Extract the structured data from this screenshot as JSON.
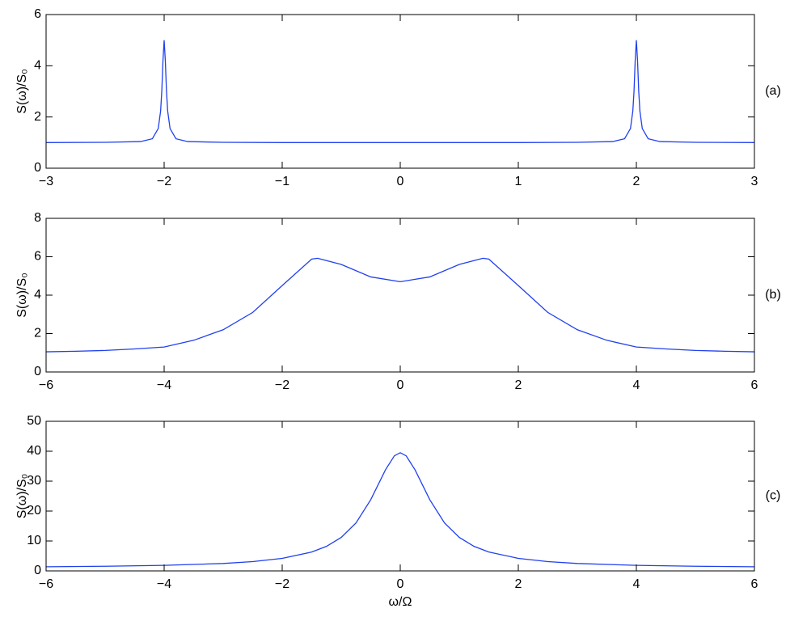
{
  "chart_data": [
    {
      "type": "line",
      "ylabel": "S(ω)/S₀",
      "annotation": "(a)",
      "x": [
        -3,
        -2.5,
        -2.2,
        -2.1,
        -2.05,
        -2.03,
        -2.02,
        -2.01,
        -2,
        -1.99,
        -1.98,
        -1.97,
        -1.95,
        -1.9,
        -1.8,
        -1.5,
        -1,
        0,
        1,
        1.5,
        1.8,
        1.9,
        1.95,
        1.97,
        1.98,
        1.99,
        2,
        2.01,
        2.02,
        2.03,
        2.05,
        2.1,
        2.2,
        2.5,
        3
      ],
      "series": [
        {
          "color": "#2040ee",
          "values": [
            1,
            1.01,
            1.04,
            1.15,
            1.55,
            2.23,
            3,
            4.2,
            5,
            4.2,
            3,
            2.23,
            1.55,
            1.15,
            1.04,
            1.01,
            1,
            1,
            1,
            1.01,
            1.04,
            1.15,
            1.55,
            2.23,
            3,
            4.2,
            5,
            4.2,
            3,
            2.23,
            1.55,
            1.15,
            1.04,
            1.01,
            1
          ]
        }
      ],
      "xlim": [
        -3,
        3
      ],
      "ylim": [
        0,
        6
      ],
      "xticks": [
        {
          "value": -3,
          "label": "−3"
        },
        {
          "value": -2,
          "label": "−2"
        },
        {
          "value": -1,
          "label": "−1"
        },
        0,
        1,
        2,
        3
      ],
      "yticks": [
        0,
        2,
        4,
        6
      ]
    },
    {
      "type": "line",
      "ylabel": "S(ω)/S₀",
      "annotation": "(b)",
      "x": [
        -6,
        -5.5,
        -5,
        -4.5,
        -4,
        -3.5,
        -3,
        -2.5,
        -2,
        -1.5,
        -1.4,
        -1,
        -0.5,
        0,
        0.5,
        1,
        1.4,
        1.5,
        2,
        2.5,
        3,
        3.5,
        4,
        4.5,
        5,
        5.5,
        6
      ],
      "series": [
        {
          "color": "#2040ee",
          "values": [
            1.05,
            1.08,
            1.12,
            1.2,
            1.3,
            1.65,
            2.2,
            3.1,
            4.5,
            5.88,
            5.92,
            5.6,
            4.95,
            4.7,
            4.95,
            5.6,
            5.92,
            5.88,
            4.5,
            3.1,
            2.2,
            1.65,
            1.3,
            1.2,
            1.12,
            1.08,
            1.05
          ]
        }
      ],
      "xlim": [
        -6,
        6
      ],
      "ylim": [
        0,
        8
      ],
      "xticks": [
        {
          "value": -6,
          "label": "−6"
        },
        {
          "value": -4,
          "label": "−4"
        },
        {
          "value": -2,
          "label": "−2"
        },
        0,
        2,
        4,
        6
      ],
      "yticks": [
        0,
        2,
        4,
        6,
        8
      ]
    },
    {
      "type": "line",
      "ylabel": "S(ω)/S₀",
      "annotation": "(c)",
      "xlabel": "ω/Ω",
      "x": [
        -6,
        -5,
        -4,
        -3,
        -2.5,
        -2,
        -1.5,
        -1.25,
        -1,
        -0.75,
        -0.5,
        -0.25,
        -0.1,
        0,
        0.1,
        0.25,
        0.5,
        0.75,
        1,
        1.25,
        1.5,
        2,
        2.5,
        3,
        4,
        5,
        6
      ],
      "series": [
        {
          "color": "#2040ee",
          "values": [
            1.38,
            1.55,
            1.85,
            2.48,
            3.1,
            4.2,
            6.31,
            8.21,
            11.2,
            16.02,
            23.8,
            33.8,
            38.46,
            39.5,
            38.46,
            33.8,
            23.8,
            16.02,
            11.2,
            8.21,
            6.31,
            4.2,
            3.1,
            2.48,
            1.85,
            1.55,
            1.38
          ]
        }
      ],
      "xlim": [
        -6,
        6
      ],
      "ylim": [
        0,
        50
      ],
      "xticks": [
        {
          "value": -6,
          "label": "−6"
        },
        {
          "value": -4,
          "label": "−4"
        },
        {
          "value": -2,
          "label": "−2"
        },
        0,
        2,
        4,
        6
      ],
      "yticks": [
        0,
        10,
        20,
        30,
        40,
        50
      ]
    }
  ]
}
